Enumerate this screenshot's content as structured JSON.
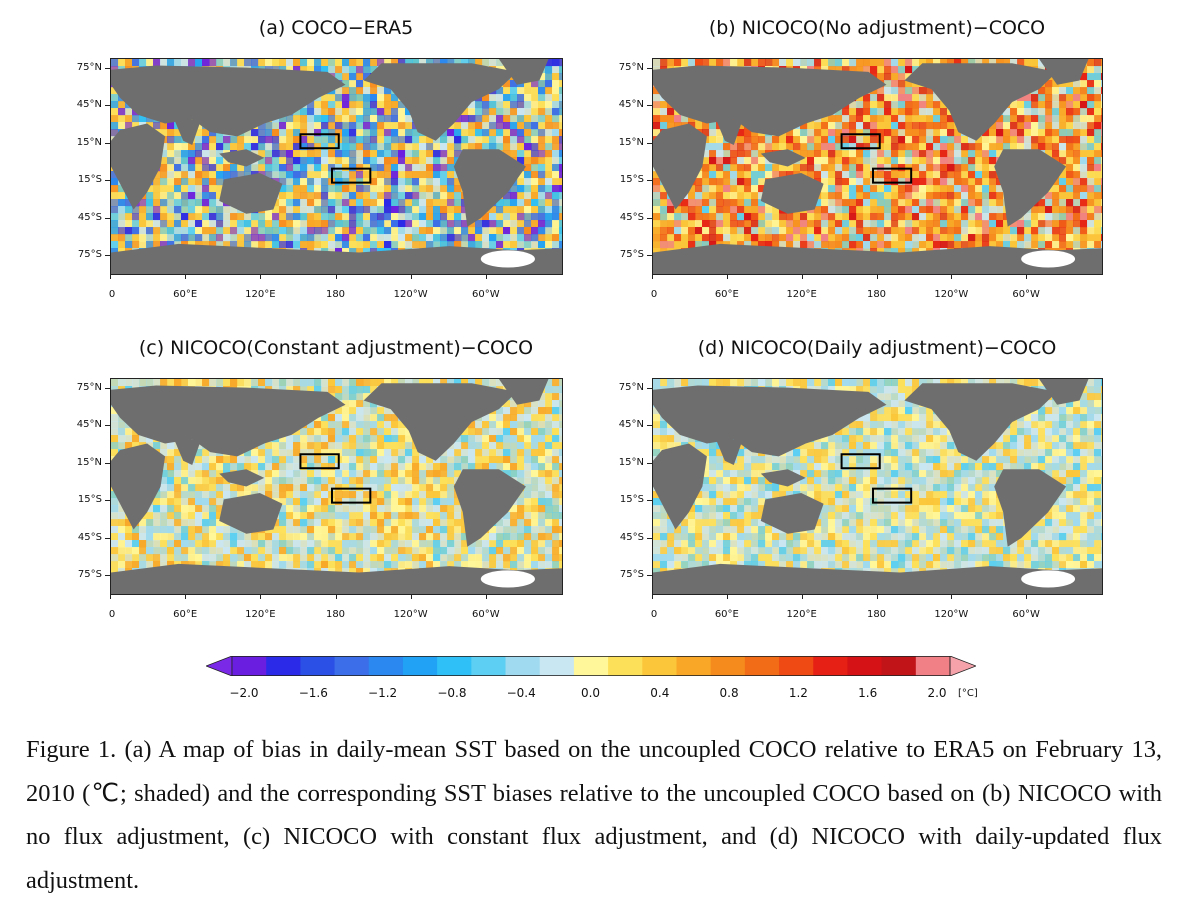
{
  "panels": [
    {
      "id": "a",
      "title": "(a) COCO−ERA5",
      "palette": "mixed"
    },
    {
      "id": "b",
      "title": "(b) NICOCO(No adjustment)−COCO",
      "palette": "warm"
    },
    {
      "id": "c",
      "title": "(c) NICOCO(Constant adjustment)−COCO",
      "palette": "light"
    },
    {
      "id": "d",
      "title": "(d) NICOCO(Daily adjustment)−COCO",
      "palette": "light2"
    }
  ],
  "lat_ticks": [
    "75°N",
    "45°N",
    "15°N",
    "15°S",
    "45°S",
    "75°S"
  ],
  "lon_ticks": [
    "0",
    "60°E",
    "120°E",
    "180",
    "120°W",
    "60°W"
  ],
  "colorbar": {
    "ticks": [
      "−2.0",
      "−1.6",
      "−1.2",
      "−0.8",
      "−0.4",
      "0.0",
      "0.4",
      "0.8",
      "1.2",
      "1.6",
      "2.0"
    ],
    "unit": "[°C]",
    "colors": [
      "#6a1fe0",
      "#2a2ae8",
      "#2a50e6",
      "#3b6ee8",
      "#2a88f0",
      "#22a2f4",
      "#2ec0f6",
      "#5ccff2",
      "#9fdaf0",
      "#c9e6f3",
      "#fff79a",
      "#fde05a",
      "#fbc63a",
      "#f8a727",
      "#f68b1d",
      "#f26b17",
      "#ef4a13",
      "#e62014",
      "#d51216",
      "#c01419",
      "#f07f86"
    ],
    "left_arrow_color": "#7a2ae6",
    "right_arrow_color": "#f6a2ab"
  },
  "colors": {
    "land": "#6e6e6e",
    "sea_ice": "#ffffff",
    "box_outline": "#000000"
  },
  "caption": "Figure 1. (a) A map of bias in daily-mean SST based on the uncoupled COCO relative to ERA5 on February 13, 2010 (℃; shaded) and the corresponding SST biases relative to the uncoupled COCO based on (b) NICOCO with no flux adjustment, (c) NICOCO with constant flux adjustment, and (d) NICOCO with daily-updated flux adjustment."
}
